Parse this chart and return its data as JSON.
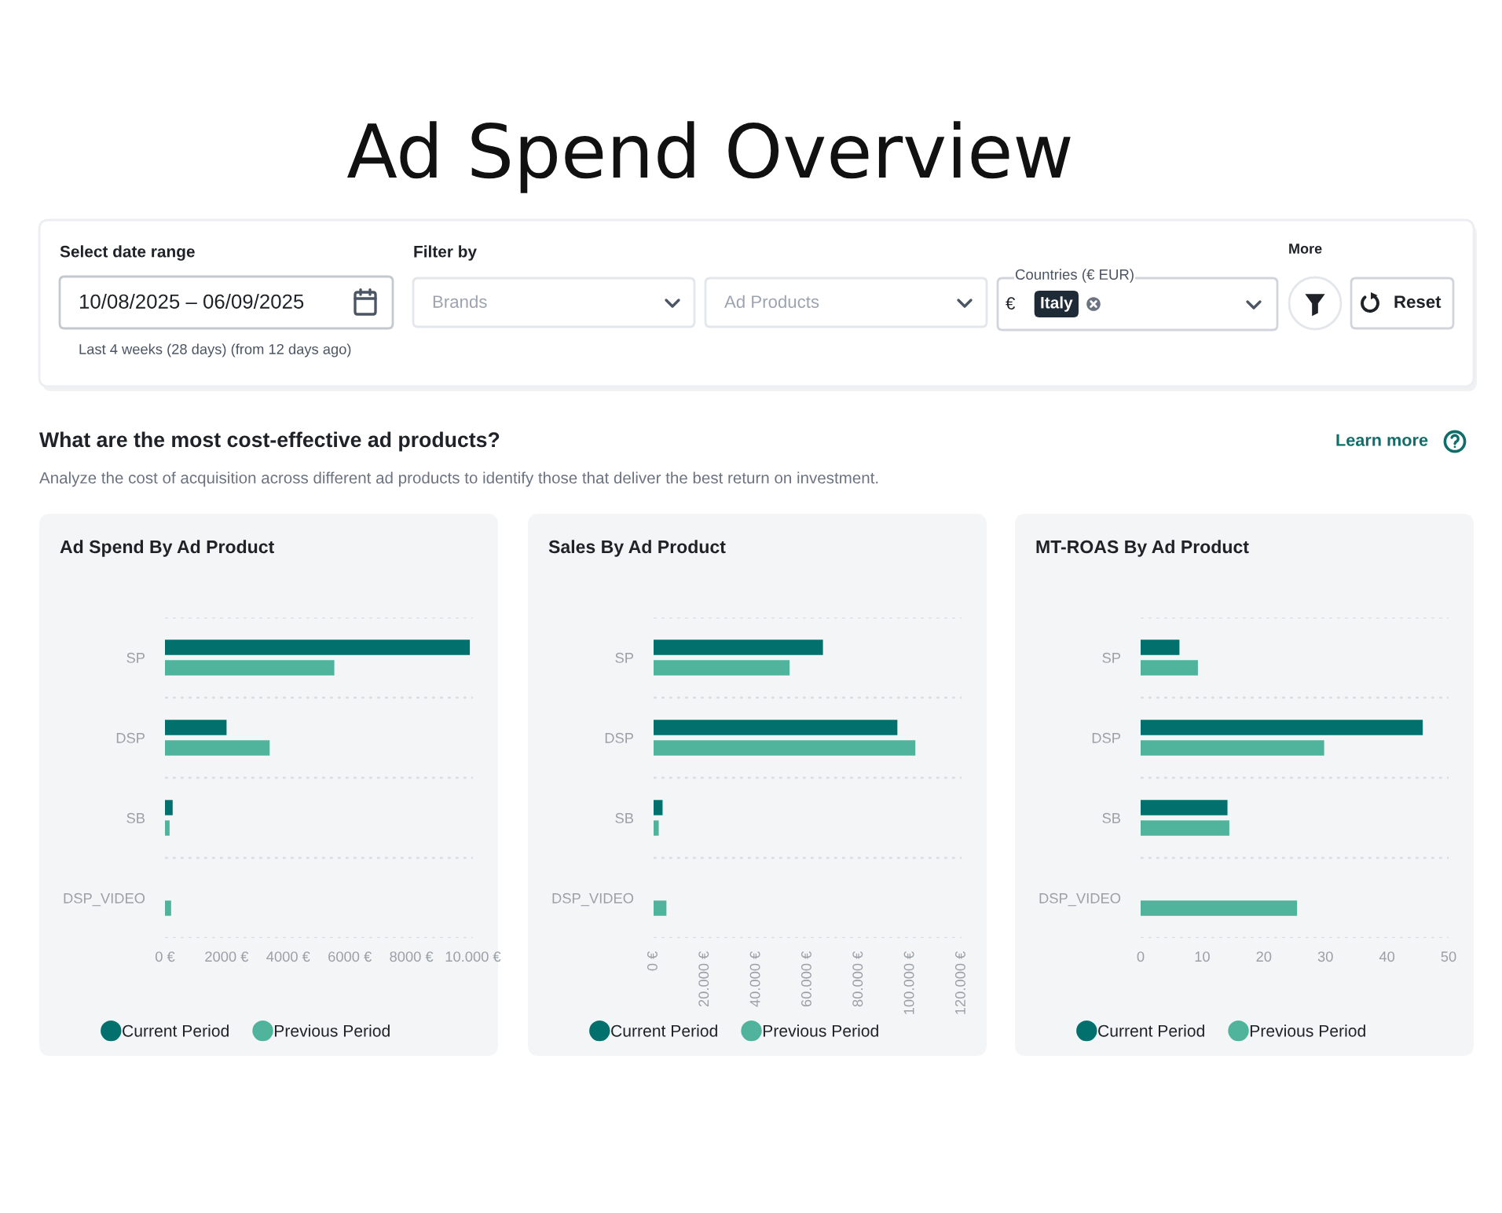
{
  "chart_data": [
    {
      "type": "other",
      "title": "Ad Spend Overview",
      "annotations": [
        "Select date range",
        "10/08/2025 – 06/09/2025",
        "Last 4 weeks (28 days) (from 12 days ago)",
        "Filter by",
        "Brands",
        "Ad Products",
        "Countries (€ EUR)",
        "€",
        "Italy",
        "More",
        "Reset"
      ]
    },
    {
      "type": "other",
      "title": "What are the most cost-effective ad products?",
      "subtitle": "Analyze the cost of acquisition across different ad products to identify those that deliver the best return on investment.",
      "annotations": [
        "Learn more"
      ]
    },
    {
      "type": "bar",
      "orientation": "horizontal",
      "title": "Ad Spend By Ad Product",
      "categories": [
        "SP",
        "DSP",
        "SB",
        "DSP_VIDEO"
      ],
      "series": [
        {
          "name": "Current Period",
          "color": "#02716d",
          "values": [
            9900,
            2000,
            250,
            null
          ]
        },
        {
          "name": "Previous Period",
          "color": "#50b39b",
          "values": [
            5500,
            3400,
            150,
            200
          ]
        }
      ],
      "xlim": [
        0,
        10000
      ],
      "xticks": [
        {
          "value": 0,
          "label": "0 €"
        },
        {
          "value": 2000,
          "label": "2000 €"
        },
        {
          "value": 4000,
          "label": "4000 €"
        },
        {
          "value": 6000,
          "label": "6000 €"
        },
        {
          "value": 8000,
          "label": "8000 €"
        },
        {
          "value": 10000,
          "label": "10.000 €"
        }
      ],
      "grid": "y",
      "legend": "bottom"
    },
    {
      "type": "bar",
      "orientation": "horizontal",
      "title": "Sales By Ad Product",
      "categories": [
        "SP",
        "DSP",
        "SB",
        "DSP_VIDEO"
      ],
      "series": [
        {
          "name": "Current Period",
          "color": "#02716d",
          "values": [
            66000,
            95000,
            3500,
            null
          ]
        },
        {
          "name": "Previous Period",
          "color": "#50b39b",
          "values": [
            53000,
            102000,
            2000,
            5000
          ]
        }
      ],
      "xlim": [
        0,
        120000
      ],
      "xticks": [
        {
          "value": 0,
          "label": "0 €"
        },
        {
          "value": 20000,
          "label": "20.000 €"
        },
        {
          "value": 40000,
          "label": "40.000 €"
        },
        {
          "value": 60000,
          "label": "60.000 €"
        },
        {
          "value": 80000,
          "label": "80.000 €"
        },
        {
          "value": 100000,
          "label": "100.000 €"
        },
        {
          "value": 120000,
          "label": "120.000 €"
        }
      ],
      "grid": "y",
      "legend": "bottom"
    },
    {
      "type": "bar",
      "orientation": "horizontal",
      "title": "MT-ROAS By Ad Product",
      "categories": [
        "SP",
        "DSP",
        "SB",
        "DSP_VIDEO"
      ],
      "series": [
        {
          "name": "Current Period",
          "color": "#02716d",
          "values": [
            6.3,
            45.8,
            14.1,
            null
          ]
        },
        {
          "name": "Previous Period",
          "color": "#50b39b",
          "values": [
            9.3,
            29.8,
            14.4,
            25.4
          ]
        }
      ],
      "xlim": [
        0,
        50
      ],
      "xticks": [
        0,
        10,
        20,
        30,
        40,
        50
      ],
      "grid": "y",
      "legend": "bottom"
    }
  ]
}
